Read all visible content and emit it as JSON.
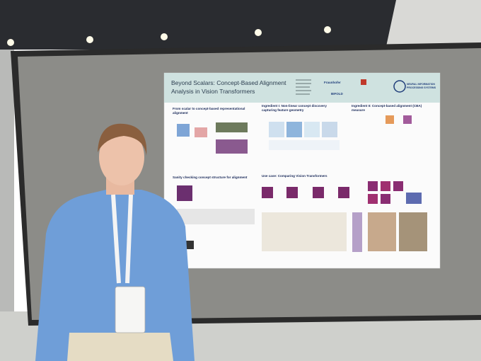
{
  "poster": {
    "title": [
      "Beyond Scalars: Concept-Based Alignment",
      "Analysis in Vision Transformers"
    ],
    "logos": [
      "Fraunhofer",
      "BIFOLD",
      "NEURAL INFORMATION",
      "PROCESSING SYSTEMS"
    ],
    "sections": [
      [
        "From scalar to concept-based representational",
        "alignment"
      ],
      [
        "Ingredient I: Non-linear concept discovery",
        "capturing feature geometry"
      ],
      [
        "Ingredient II: Concept-based alignment (CBA)",
        "measure"
      ],
      [
        "Sanity checking concept structure for alignment"
      ],
      [
        "Use case: Comparing Vision Transformers"
      ]
    ]
  }
}
